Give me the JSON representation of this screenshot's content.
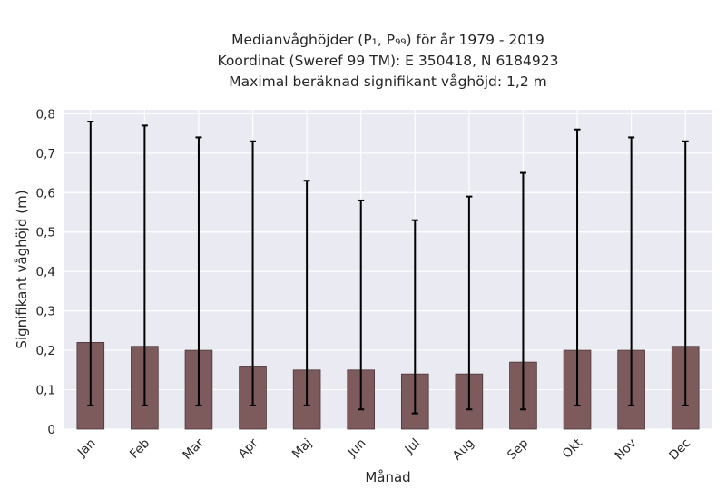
{
  "chart_data": {
    "type": "bar",
    "title_lines": [
      "Medianvåghöjder (P₁, P₉₉) för år 1979 - 2019",
      "Koordinat (Sweref 99 TM): E 350418, N 6184923",
      "Maximal beräknad signifikant våghöjd: 1,2 m"
    ],
    "xlabel": "Månad",
    "ylabel": "Signifikant våghöjd (m)",
    "categories": [
      "Jan",
      "Feb",
      "Mar",
      "Apr",
      "Maj",
      "Jun",
      "Jul",
      "Aug",
      "Sep",
      "Okt",
      "Nov",
      "Dec"
    ],
    "values": [
      0.22,
      0.21,
      0.2,
      0.16,
      0.15,
      0.15,
      0.14,
      0.14,
      0.17,
      0.2,
      0.2,
      0.21
    ],
    "p1": [
      0.06,
      0.06,
      0.06,
      0.06,
      0.06,
      0.05,
      0.04,
      0.05,
      0.05,
      0.06,
      0.06,
      0.06
    ],
    "p99": [
      0.78,
      0.77,
      0.74,
      0.73,
      0.63,
      0.58,
      0.53,
      0.59,
      0.65,
      0.76,
      0.74,
      0.73
    ],
    "ylim": [
      0,
      0.81
    ],
    "yticks": [
      0,
      0.1,
      0.2,
      0.3,
      0.4,
      0.5,
      0.6,
      0.7,
      0.8
    ],
    "ytick_labels": [
      "0",
      "0,1",
      "0,2",
      "0,3",
      "0,4",
      "0,5",
      "0,6",
      "0,7",
      "0,8"
    ],
    "grid": true,
    "colors": {
      "bar": "#7d5b5c",
      "bar_edge": "#4a3738",
      "error_bar": "#000000",
      "plot_background": "#eaeaf2",
      "grid": "#ffffff"
    }
  }
}
